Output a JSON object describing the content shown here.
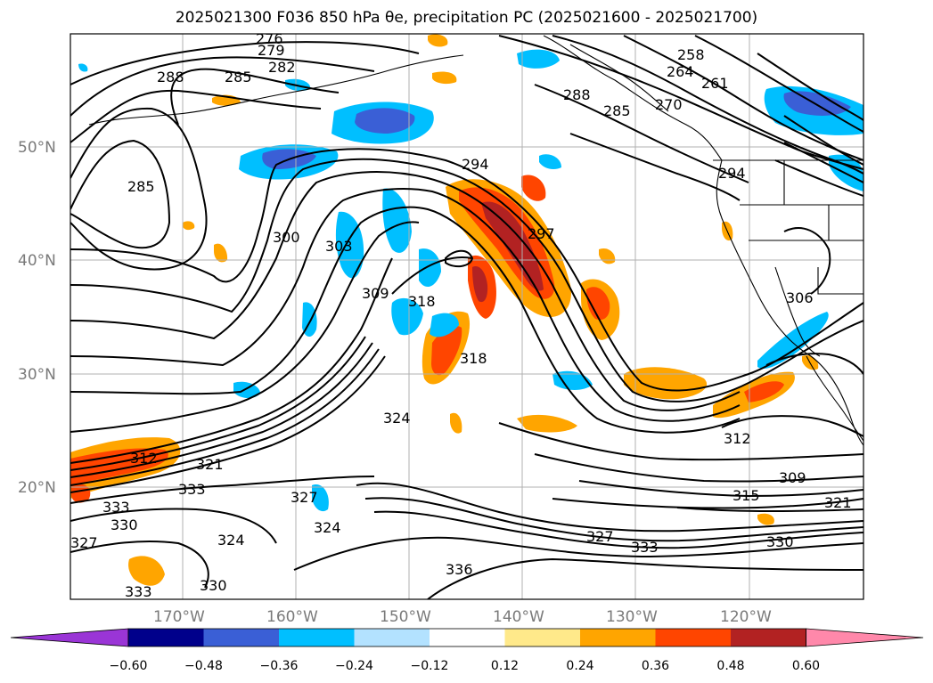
{
  "title": "2025021300 F036 850 hPa θe, precipitation PC (2025021600 - 2025021700)",
  "map": {
    "lat_labels": [
      "50°N",
      "40°N",
      "30°N",
      "20°N"
    ],
    "lon_labels": [
      "170°W",
      "160°W",
      "150°W",
      "140°W",
      "130°W",
      "120°W"
    ],
    "contour_labels": [
      "276",
      "279",
      "282",
      "285",
      "288",
      "285",
      "294",
      "300",
      "303",
      "309",
      "318",
      "297",
      "258",
      "264",
      "261",
      "270",
      "288",
      "285",
      "294",
      "306",
      "312",
      "309",
      "315",
      "321",
      "330",
      "327",
      "333",
      "336",
      "324",
      "327",
      "324",
      "333",
      "330",
      "333",
      "327",
      "330",
      "318",
      "324",
      "312",
      "321",
      "333"
    ]
  },
  "colorbar": {
    "ticks": [
      "−0.60",
      "−0.48",
      "−0.36",
      "−0.24",
      "−0.12",
      "0.12",
      "0.24",
      "0.36",
      "0.48",
      "0.60"
    ],
    "colors": [
      "#9a35d6",
      "#00008b",
      "#3a5fd6",
      "#00bfff",
      "#b3e2ff",
      "#ffffff",
      "#ffe98a",
      "#ffa500",
      "#ff4500",
      "#b22222",
      "#ff88aa"
    ]
  }
}
